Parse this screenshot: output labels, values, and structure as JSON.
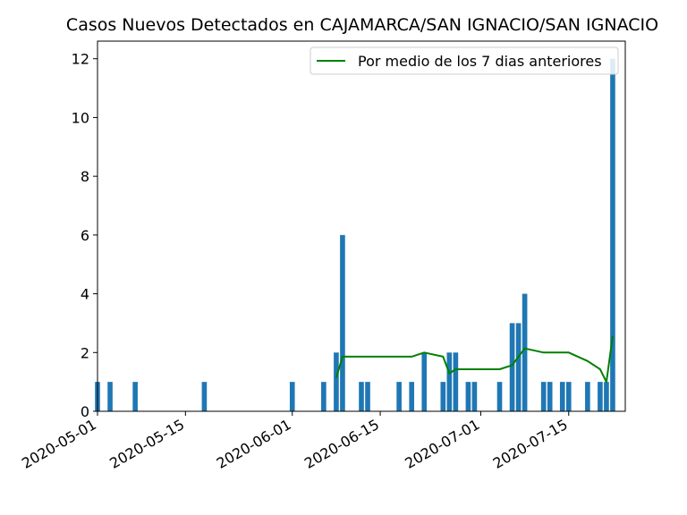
{
  "chart_data": {
    "type": "bar",
    "title": "Casos Nuevos Detectados en CAJAMARCA/SAN IGNACIO/SAN IGNACIO",
    "xlabel": "",
    "ylabel": "",
    "x_ticks": [
      "2020-05-01",
      "2020-05-15",
      "2020-06-01",
      "2020-06-15",
      "2020-07-01",
      "2020-07-15"
    ],
    "y_ticks": [
      "0",
      "2",
      "4",
      "6",
      "8",
      "10",
      "12"
    ],
    "x_range": [
      "2020-05-01",
      "2020-07-24"
    ],
    "ylim": [
      0,
      12.6
    ],
    "grid": false,
    "legend_position": "top-right",
    "bar_color": "#1f77b4",
    "line_color": "#008000",
    "bars": [
      {
        "date": "2020-05-01",
        "value": 1
      },
      {
        "date": "2020-05-03",
        "value": 1
      },
      {
        "date": "2020-05-07",
        "value": 1
      },
      {
        "date": "2020-05-18",
        "value": 1
      },
      {
        "date": "2020-06-01",
        "value": 1
      },
      {
        "date": "2020-06-06",
        "value": 1
      },
      {
        "date": "2020-06-08",
        "value": 2
      },
      {
        "date": "2020-06-09",
        "value": 6
      },
      {
        "date": "2020-06-12",
        "value": 1
      },
      {
        "date": "2020-06-13",
        "value": 1
      },
      {
        "date": "2020-06-18",
        "value": 1
      },
      {
        "date": "2020-06-20",
        "value": 1
      },
      {
        "date": "2020-06-22",
        "value": 2
      },
      {
        "date": "2020-06-25",
        "value": 1
      },
      {
        "date": "2020-06-26",
        "value": 2
      },
      {
        "date": "2020-06-27",
        "value": 2
      },
      {
        "date": "2020-06-29",
        "value": 1
      },
      {
        "date": "2020-06-30",
        "value": 1
      },
      {
        "date": "2020-07-04",
        "value": 1
      },
      {
        "date": "2020-07-06",
        "value": 3
      },
      {
        "date": "2020-07-07",
        "value": 3
      },
      {
        "date": "2020-07-08",
        "value": 4
      },
      {
        "date": "2020-07-11",
        "value": 1
      },
      {
        "date": "2020-07-12",
        "value": 1
      },
      {
        "date": "2020-07-14",
        "value": 1
      },
      {
        "date": "2020-07-15",
        "value": 1
      },
      {
        "date": "2020-07-18",
        "value": 1
      },
      {
        "date": "2020-07-20",
        "value": 1
      },
      {
        "date": "2020-07-21",
        "value": 1
      },
      {
        "date": "2020-07-22",
        "value": 12
      }
    ],
    "series": [
      {
        "name": "Por medio de los 7 dias anteriores",
        "points": [
          {
            "date": "2020-06-08",
            "value": 1.14
          },
          {
            "date": "2020-06-09",
            "value": 1.86
          },
          {
            "date": "2020-06-20",
            "value": 1.86
          },
          {
            "date": "2020-06-22",
            "value": 2.0
          },
          {
            "date": "2020-06-25",
            "value": 1.86
          },
          {
            "date": "2020-06-26",
            "value": 1.29
          },
          {
            "date": "2020-06-27",
            "value": 1.43
          },
          {
            "date": "2020-07-04",
            "value": 1.43
          },
          {
            "date": "2020-07-06",
            "value": 1.57
          },
          {
            "date": "2020-07-08",
            "value": 2.14
          },
          {
            "date": "2020-07-11",
            "value": 2.0
          },
          {
            "date": "2020-07-15",
            "value": 2.0
          },
          {
            "date": "2020-07-18",
            "value": 1.71
          },
          {
            "date": "2020-07-20",
            "value": 1.43
          },
          {
            "date": "2020-07-21",
            "value": 1.0
          },
          {
            "date": "2020-07-22",
            "value": 2.57
          }
        ]
      }
    ]
  }
}
